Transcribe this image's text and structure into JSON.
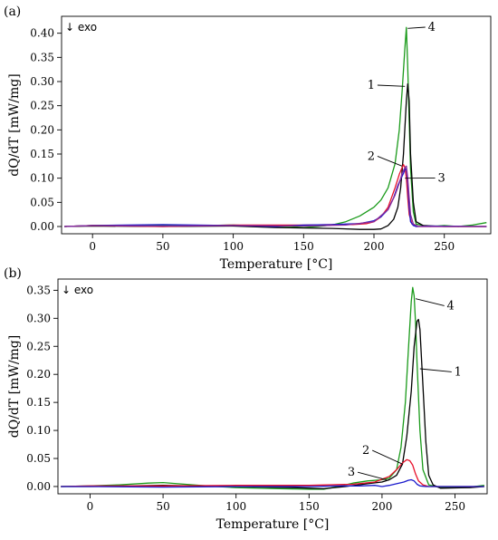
{
  "chart_data": [
    {
      "panel_label": "(a)",
      "type": "line",
      "annotation": "↓ exo",
      "xlabel": "Temperature [°C]",
      "ylabel": "dQ/dT [mW/mg]",
      "xlim": [
        -22,
        283
      ],
      "ylim": [
        -0.015,
        0.435
      ],
      "xticks": [
        0,
        50,
        100,
        150,
        200,
        250
      ],
      "yticks": [
        0.0,
        0.05,
        0.1,
        0.15,
        0.2,
        0.25,
        0.3,
        0.35,
        0.4
      ],
      "grid": false,
      "colors": {
        "1": "#000000",
        "2": "#e8102a",
        "3": "#1a1acc",
        "4": "#1a9a1a",
        "purple": "#8a2a9a"
      },
      "series": [
        {
          "name": "4",
          "color": "#1a9a1a",
          "x": [
            -20,
            0,
            20,
            50,
            80,
            100,
            120,
            140,
            150,
            160,
            170,
            180,
            190,
            200,
            205,
            210,
            215,
            218,
            220,
            222,
            223,
            224,
            226,
            228,
            230,
            235,
            240,
            250,
            260,
            270,
            280
          ],
          "y": [
            0.0,
            0.002,
            0.002,
            0.003,
            0.002,
            0.003,
            0.001,
            0.0,
            -0.002,
            0.0,
            0.003,
            0.01,
            0.022,
            0.04,
            0.055,
            0.08,
            0.13,
            0.2,
            0.28,
            0.37,
            0.412,
            0.33,
            0.12,
            0.03,
            0.005,
            0.002,
            0.0,
            0.002,
            0.0,
            0.003,
            0.008
          ]
        },
        {
          "name": "1",
          "color": "#000000",
          "x": [
            -20,
            0,
            50,
            100,
            130,
            150,
            170,
            190,
            200,
            205,
            210,
            214,
            217,
            219,
            221,
            223,
            224,
            225,
            226,
            228,
            230,
            235,
            250,
            280
          ],
          "y": [
            0.0,
            0.001,
            0.0,
            0.001,
            -0.002,
            -0.003,
            -0.004,
            -0.006,
            -0.006,
            -0.005,
            0.002,
            0.015,
            0.04,
            0.08,
            0.15,
            0.26,
            0.295,
            0.26,
            0.15,
            0.05,
            0.01,
            0.002,
            0.0,
            0.0
          ]
        },
        {
          "name": "2",
          "color": "#e8102a",
          "x": [
            -20,
            0,
            50,
            100,
            150,
            170,
            185,
            195,
            200,
            205,
            210,
            215,
            218,
            220,
            221,
            222,
            223,
            224,
            225,
            227,
            230,
            240,
            280
          ],
          "y": [
            0.0,
            0.002,
            0.0,
            0.003,
            0.003,
            0.004,
            0.004,
            0.006,
            0.01,
            0.02,
            0.04,
            0.08,
            0.108,
            0.122,
            0.128,
            0.122,
            0.1,
            0.06,
            0.025,
            0.005,
            0.0,
            0.0,
            0.0
          ]
        },
        {
          "name": "3",
          "color": "#1a1acc",
          "x": [
            -20,
            0,
            50,
            100,
            130,
            150,
            170,
            180,
            190,
            200,
            205,
            210,
            214,
            217,
            219,
            221,
            222,
            223,
            224,
            225,
            226,
            228,
            230,
            240,
            280
          ],
          "y": [
            0.0,
            0.002,
            0.004,
            0.002,
            0.0,
            0.003,
            0.004,
            0.005,
            0.006,
            0.012,
            0.02,
            0.035,
            0.06,
            0.085,
            0.098,
            0.11,
            0.118,
            0.12,
            0.09,
            0.04,
            0.01,
            0.002,
            0.0,
            0.001,
            0.0
          ]
        },
        {
          "name": "",
          "color": "#8a2a9a",
          "x": [
            -20,
            0,
            50,
            100,
            150,
            180,
            200,
            210,
            215,
            218,
            220,
            222,
            223,
            224,
            225,
            226,
            228,
            232,
            240,
            280
          ],
          "y": [
            0.0,
            0.002,
            0.001,
            0.002,
            0.001,
            0.003,
            0.01,
            0.035,
            0.065,
            0.09,
            0.11,
            0.122,
            0.125,
            0.1,
            0.06,
            0.025,
            0.005,
            0.0,
            0.0,
            0.0
          ]
        }
      ],
      "labels": [
        {
          "text": "4",
          "at": [
            241,
            0.405
          ],
          "ref": [
            224,
            0.41
          ]
        },
        {
          "text": "1",
          "at": [
            198,
            0.285
          ],
          "ref": [
            222,
            0.29
          ]
        },
        {
          "text": "2",
          "at": [
            198,
            0.138
          ],
          "ref": [
            220,
            0.125
          ]
        },
        {
          "text": "3",
          "at": [
            248,
            0.093
          ],
          "ref": [
            222,
            0.1
          ]
        }
      ]
    },
    {
      "panel_label": "(b)",
      "type": "line",
      "annotation": "↓ exo",
      "xlabel": "Temperature [°C]",
      "ylabel": "dQ/dT [mW/mg]",
      "xlim": [
        -22,
        272
      ],
      "ylim": [
        -0.013,
        0.37
      ],
      "xticks": [
        0,
        50,
        100,
        150,
        200,
        250
      ],
      "yticks": [
        0.0,
        0.05,
        0.1,
        0.15,
        0.2,
        0.25,
        0.3,
        0.35
      ],
      "grid": false,
      "colors": {
        "1": "#000000",
        "2": "#e8102a",
        "3": "#1a1acc",
        "4": "#1a9a1a"
      },
      "series": [
        {
          "name": "4",
          "color": "#1a9a1a",
          "x": [
            -20,
            0,
            20,
            40,
            50,
            60,
            80,
            100,
            130,
            150,
            160,
            170,
            180,
            190,
            200,
            205,
            210,
            213,
            216,
            218,
            220,
            221,
            222,
            223,
            224,
            226,
            228,
            232,
            240,
            260,
            270
          ],
          "y": [
            0.0,
            0.001,
            0.003,
            0.006,
            0.007,
            0.005,
            0.001,
            -0.002,
            -0.004,
            -0.005,
            -0.005,
            0.0,
            0.006,
            0.01,
            0.012,
            0.015,
            0.03,
            0.07,
            0.15,
            0.24,
            0.33,
            0.355,
            0.34,
            0.29,
            0.22,
            0.1,
            0.03,
            0.003,
            -0.002,
            -0.001,
            0.002
          ]
        },
        {
          "name": "1",
          "color": "#000000",
          "x": [
            -20,
            0,
            50,
            100,
            140,
            160,
            175,
            190,
            200,
            205,
            210,
            214,
            217,
            220,
            222,
            224,
            225,
            226,
            228,
            230,
            232,
            235,
            240,
            260,
            270
          ],
          "y": [
            0.0,
            0.0,
            0.002,
            0.0,
            -0.002,
            -0.004,
            0.0,
            0.005,
            0.008,
            0.012,
            0.02,
            0.04,
            0.09,
            0.17,
            0.25,
            0.295,
            0.298,
            0.28,
            0.18,
            0.08,
            0.02,
            0.003,
            -0.003,
            -0.002,
            0.0
          ]
        },
        {
          "name": "2",
          "color": "#e8102a",
          "x": [
            -20,
            0,
            50,
            100,
            150,
            180,
            195,
            205,
            210,
            214,
            217,
            219,
            221,
            223,
            225,
            228,
            232,
            240,
            270
          ],
          "y": [
            0.0,
            0.001,
            0.001,
            0.002,
            0.002,
            0.004,
            0.008,
            0.018,
            0.03,
            0.042,
            0.048,
            0.046,
            0.038,
            0.022,
            0.01,
            0.003,
            0.0,
            0.0,
            0.0
          ]
        },
        {
          "name": "3",
          "color": "#1a1acc",
          "x": [
            -20,
            0,
            50,
            100,
            150,
            170,
            185,
            195,
            200,
            205,
            210,
            215,
            218,
            220,
            222,
            224,
            226,
            230,
            240,
            270
          ],
          "y": [
            0.0,
            0.0,
            -0.001,
            0.0,
            0.0,
            0.001,
            0.001,
            0.002,
            0.0,
            0.002,
            0.005,
            0.008,
            0.011,
            0.012,
            0.01,
            0.004,
            0.001,
            0.0,
            0.0,
            0.0
          ]
        }
      ],
      "labels": [
        {
          "text": "4",
          "at": [
            247,
            0.316
          ],
          "ref": [
            223,
            0.335
          ]
        },
        {
          "text": "1",
          "at": [
            252,
            0.198
          ],
          "ref": [
            226,
            0.21
          ]
        },
        {
          "text": "2",
          "at": [
            189,
            0.058
          ],
          "ref": [
            214,
            0.04
          ]
        },
        {
          "text": "3",
          "at": [
            179,
            0.019
          ],
          "ref": [
            203,
            0.012
          ]
        }
      ]
    }
  ]
}
